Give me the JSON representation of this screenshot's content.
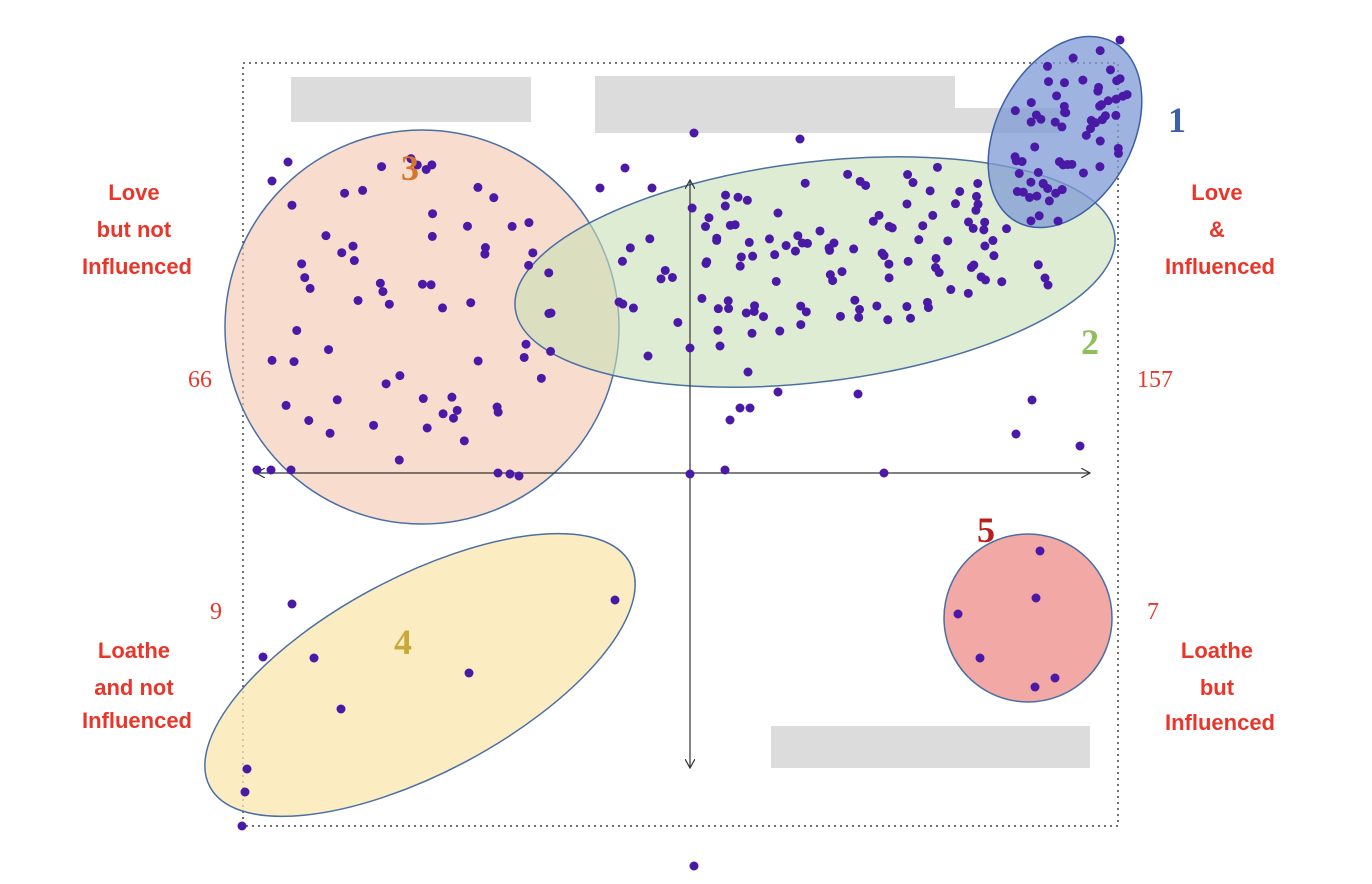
{
  "quadrants": [
    {
      "lines": [
        "Love",
        "but not",
        "Influenced"
      ],
      "count": 66
    },
    {
      "lines": [
        "Love",
        "&",
        "Influenced"
      ],
      "count": 157
    },
    {
      "lines": [
        "Loathe",
        "and not",
        "Influenced"
      ],
      "count": 9
    },
    {
      "lines": [
        "Loathe",
        "but",
        "Influenced"
      ],
      "count": 7
    }
  ],
  "clusters": [
    {
      "label": "1"
    },
    {
      "label": "2"
    },
    {
      "label": "3"
    },
    {
      "label": "4"
    },
    {
      "label": "5"
    }
  ]
}
